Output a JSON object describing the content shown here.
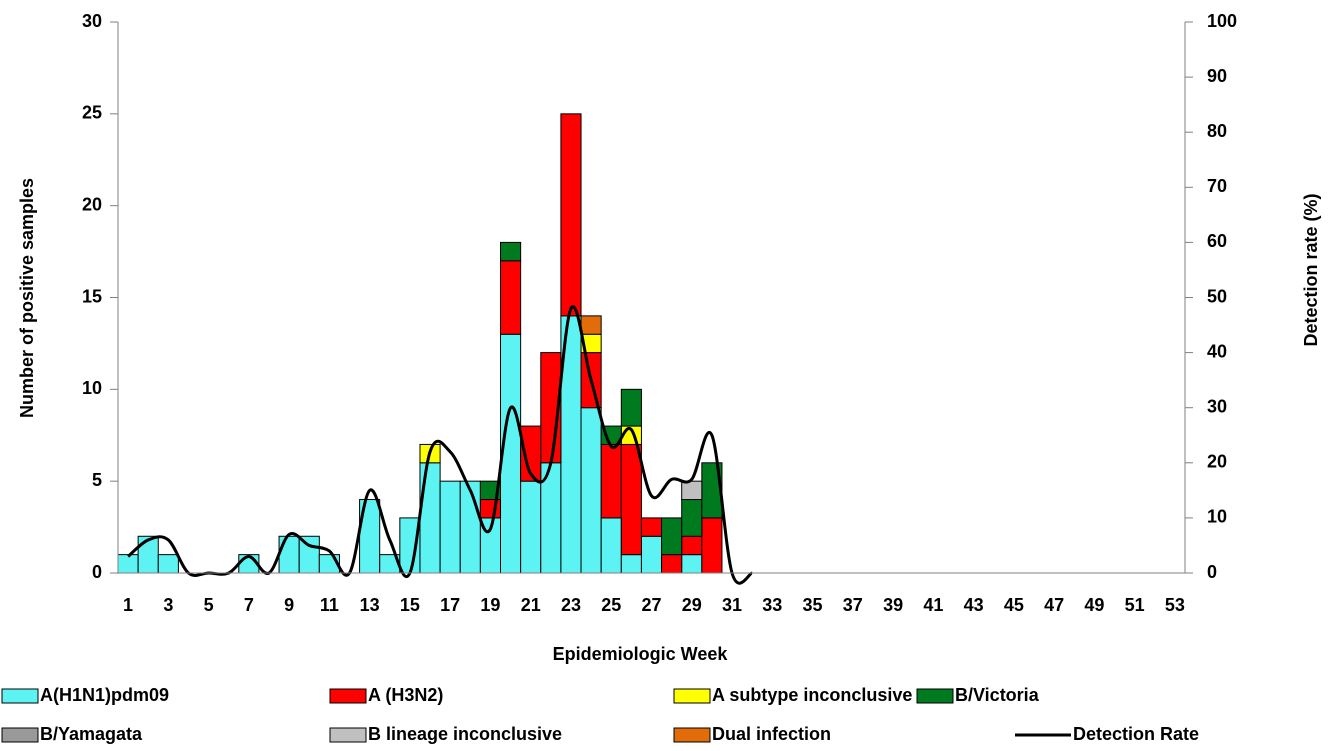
{
  "chart_data": {
    "type": "bar",
    "stacked": true,
    "x_label": "Epidemiologic Week",
    "y_label": "Number of positive samples",
    "y2_label": "Detection rate (%)",
    "categories": [
      1,
      null,
      3,
      null,
      5,
      null,
      7,
      null,
      9,
      null,
      11,
      null,
      13,
      null,
      15,
      null,
      17,
      null,
      19,
      null,
      21,
      null,
      23,
      null,
      25,
      null,
      27,
      null,
      29,
      null,
      31,
      null,
      33,
      null,
      35,
      null,
      37,
      null,
      39,
      null,
      41,
      null,
      43,
      null,
      45,
      null,
      47,
      null,
      49,
      null,
      51,
      null,
      53
    ],
    "ylim": [
      0,
      30
    ],
    "yticks": [
      0,
      5,
      10,
      15,
      20,
      25,
      30
    ],
    "y2lim": [
      0,
      100
    ],
    "y2ticks": [
      0,
      10,
      20,
      30,
      40,
      50,
      60,
      70,
      80,
      90,
      100
    ],
    "series": [
      {
        "name": "A(H1N1)pdm09",
        "color": "#5ef3f3",
        "values": [
          1,
          2,
          1,
          0,
          0,
          0,
          1,
          0,
          2,
          2,
          1,
          0,
          4,
          1,
          3,
          6,
          5,
          5,
          3,
          13,
          5,
          6,
          14,
          9,
          3,
          1,
          2,
          0,
          1,
          0,
          0,
          0,
          0,
          0,
          0,
          0,
          0,
          0,
          0,
          0,
          0,
          0,
          0,
          0,
          0,
          0,
          0,
          0,
          0,
          0,
          0,
          0,
          0
        ]
      },
      {
        "name": "A (H3N2)",
        "color": "#ff0000",
        "values": [
          0,
          0,
          0,
          0,
          0,
          0,
          0,
          0,
          0,
          0,
          0,
          0,
          0,
          0,
          0,
          0,
          0,
          0,
          1,
          4,
          3,
          6,
          11,
          3,
          4,
          6,
          1,
          1,
          1,
          3,
          0,
          0,
          0,
          0,
          0,
          0,
          0,
          0,
          0,
          0,
          0,
          0,
          0,
          0,
          0,
          0,
          0,
          0,
          0,
          0,
          0,
          0,
          0
        ]
      },
      {
        "name": "A subtype inconclusive",
        "color": "#ffff00",
        "values": [
          0,
          0,
          0,
          0,
          0,
          0,
          0,
          0,
          0,
          0,
          0,
          0,
          0,
          0,
          0,
          1,
          0,
          0,
          0,
          0,
          0,
          0,
          0,
          1,
          0,
          1,
          0,
          0,
          0,
          0,
          0,
          0,
          0,
          0,
          0,
          0,
          0,
          0,
          0,
          0,
          0,
          0,
          0,
          0,
          0,
          0,
          0,
          0,
          0,
          0,
          0,
          0,
          0
        ]
      },
      {
        "name": "B/Victoria",
        "color": "#007a1f",
        "values": [
          0,
          0,
          0,
          0,
          0,
          0,
          0,
          0,
          0,
          0,
          0,
          0,
          0,
          0,
          0,
          0,
          0,
          0,
          1,
          1,
          0,
          0,
          0,
          0,
          1,
          2,
          0,
          2,
          2,
          3,
          0,
          0,
          0,
          0,
          0,
          0,
          0,
          0,
          0,
          0,
          0,
          0,
          0,
          0,
          0,
          0,
          0,
          0,
          0,
          0,
          0,
          0,
          0
        ]
      },
      {
        "name": "B/Yamagata",
        "color": "#999999",
        "values": [
          0,
          0,
          0,
          0,
          0,
          0,
          0,
          0,
          0,
          0,
          0,
          0,
          0,
          0,
          0,
          0,
          0,
          0,
          0,
          0,
          0,
          0,
          0,
          0,
          0,
          0,
          0,
          0,
          0,
          0,
          0,
          0,
          0,
          0,
          0,
          0,
          0,
          0,
          0,
          0,
          0,
          0,
          0,
          0,
          0,
          0,
          0,
          0,
          0,
          0,
          0,
          0,
          0
        ]
      },
      {
        "name": "B lineage inconclusive",
        "color": "#c0c0c0",
        "values": [
          0,
          0,
          0,
          0,
          0,
          0,
          0,
          0,
          0,
          0,
          0,
          0,
          0,
          0,
          0,
          0,
          0,
          0,
          0,
          0,
          0,
          0,
          0,
          0,
          0,
          0,
          0,
          0,
          1,
          0,
          0,
          0,
          0,
          0,
          0,
          0,
          0,
          0,
          0,
          0,
          0,
          0,
          0,
          0,
          0,
          0,
          0,
          0,
          0,
          0,
          0,
          0,
          0
        ]
      },
      {
        "name": "Dual infection",
        "color": "#e36c0a",
        "values": [
          0,
          0,
          0,
          0,
          0,
          0,
          0,
          0,
          0,
          0,
          0,
          0,
          0,
          0,
          0,
          0,
          0,
          0,
          0,
          0,
          0,
          0,
          0,
          1,
          0,
          0,
          0,
          0,
          0,
          0,
          0,
          0,
          0,
          0,
          0,
          0,
          0,
          0,
          0,
          0,
          0,
          0,
          0,
          0,
          0,
          0,
          0,
          0,
          0,
          0,
          0,
          0,
          0
        ]
      },
      {
        "name": "Detection Rate",
        "color": "#000000",
        "type": "line",
        "axis": "y2",
        "values": [
          3,
          6,
          6,
          0,
          0,
          0,
          3,
          0,
          7,
          5,
          4,
          0,
          15,
          6,
          0,
          22,
          22,
          15,
          8,
          30,
          18,
          20,
          48,
          35,
          23,
          26,
          14,
          17,
          17,
          25,
          0,
          0,
          null,
          null,
          null,
          null,
          null,
          null,
          null,
          null,
          null,
          null,
          null,
          null,
          null,
          null,
          null,
          null,
          null,
          null,
          null,
          null,
          null
        ]
      }
    ]
  }
}
